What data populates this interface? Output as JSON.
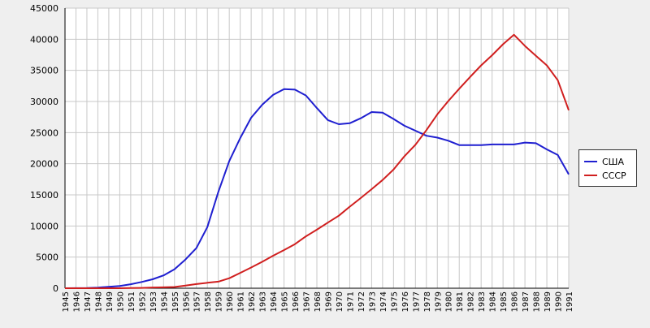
{
  "chart_data": {
    "type": "line",
    "title": "",
    "xlabel": "",
    "ylabel": "",
    "x": [
      1945,
      1946,
      1947,
      1948,
      1949,
      1950,
      1951,
      1952,
      1953,
      1954,
      1955,
      1956,
      1957,
      1958,
      1959,
      1960,
      1961,
      1962,
      1963,
      1964,
      1965,
      1966,
      1967,
      1968,
      1969,
      1970,
      1971,
      1972,
      1973,
      1974,
      1975,
      1976,
      1977,
      1978,
      1979,
      1980,
      1981,
      1982,
      1983,
      1984,
      1985,
      1986,
      1987,
      1988,
      1989,
      1990,
      1991
    ],
    "xlim": [
      1945,
      1991
    ],
    "ylim": [
      0,
      45000
    ],
    "yticks": [
      0,
      5000,
      10000,
      15000,
      20000,
      25000,
      30000,
      35000,
      40000,
      45000
    ],
    "grid": true,
    "legend_position": "right",
    "series": [
      {
        "name": "США",
        "color": "#1f1fd0",
        "values": [
          6,
          11,
          32,
          110,
          235,
          369,
          640,
          1005,
          1436,
          2063,
          3057,
          4618,
          6444,
          9822,
          15468,
          20434,
          24126,
          27387,
          29459,
          31056,
          31982,
          31900,
          30970,
          28947,
          27016,
          26346,
          26500,
          27300,
          28300,
          28200,
          27200,
          26100,
          25300,
          24500,
          24200,
          23700,
          23000,
          23000,
          23000,
          23100,
          23100,
          23100,
          23400,
          23300,
          22300,
          21400,
          18300
        ]
      },
      {
        "name": "СССР",
        "color": "#d01f1f",
        "values": [
          0,
          0,
          0,
          0,
          1,
          5,
          25,
          50,
          120,
          150,
          200,
          426,
          660,
          869,
          1060,
          1605,
          2471,
          3322,
          4238,
          5221,
          6129,
          7089,
          8339,
          9399,
          10538,
          11643,
          13092,
          14478,
          15915,
          17385,
          19055,
          21205,
          23044,
          25393,
          27935,
          30062,
          32049,
          33952,
          35804,
          37431,
          39197,
          40723,
          38922,
          37325,
          35805,
          33417,
          28590
        ]
      }
    ]
  }
}
